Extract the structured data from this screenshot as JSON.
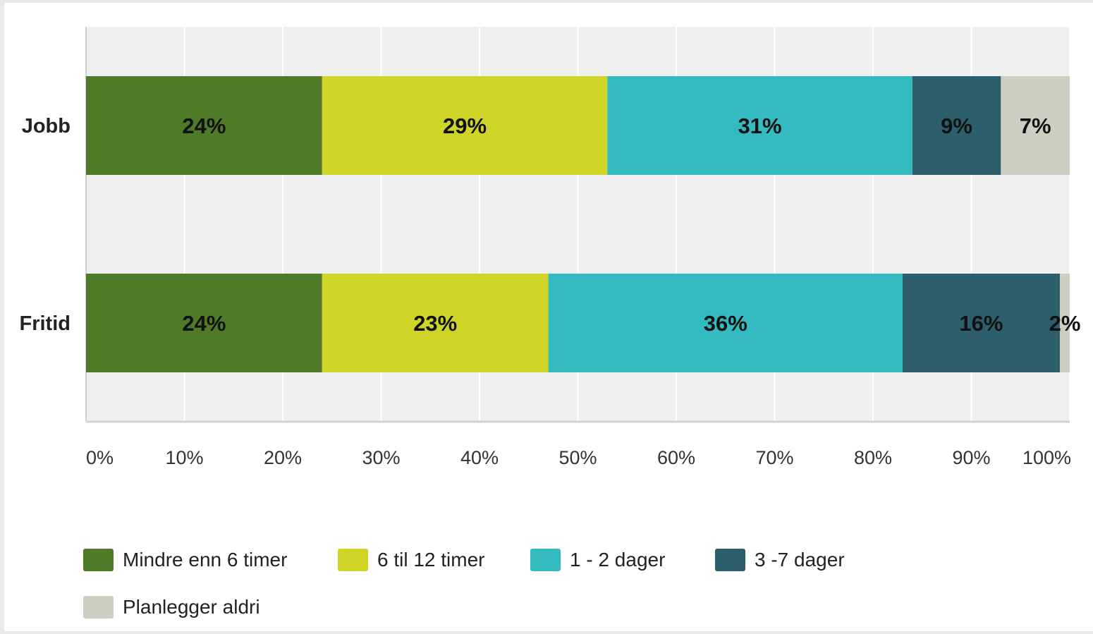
{
  "chart_data": {
    "type": "bar",
    "orientation": "horizontal",
    "stacked": true,
    "categories": [
      "Jobb",
      "Fritid"
    ],
    "series": [
      {
        "name": "Mindre enn 6 timer",
        "values": [
          24,
          24
        ],
        "labels": [
          "24%",
          "24%"
        ],
        "color": "#4f7a28"
      },
      {
        "name": "6 til 12 timer",
        "values": [
          29,
          23
        ],
        "labels": [
          "29%",
          "23%"
        ],
        "color": "#cfd527"
      },
      {
        "name": "1 - 2 dager",
        "values": [
          31,
          36
        ],
        "labels": [
          "31%",
          "36%"
        ],
        "color": "#33bbbf"
      },
      {
        "name": "3 -7 dager",
        "values": [
          9,
          16
        ],
        "labels": [
          "9%",
          "16%"
        ],
        "color": "#2d5e6c"
      },
      {
        "name": "Planlegger aldri",
        "values": [
          7,
          2
        ],
        "labels": [
          "7%",
          "2%"
        ],
        "color": "#cfcfc1"
      }
    ],
    "x_ticks": [
      "0%",
      "10%",
      "20%",
      "30%",
      "40%",
      "50%",
      "60%",
      "70%",
      "80%",
      "90%",
      "100%"
    ],
    "xlim": [
      0,
      100
    ],
    "grid": true,
    "legend_position": "bottom"
  }
}
